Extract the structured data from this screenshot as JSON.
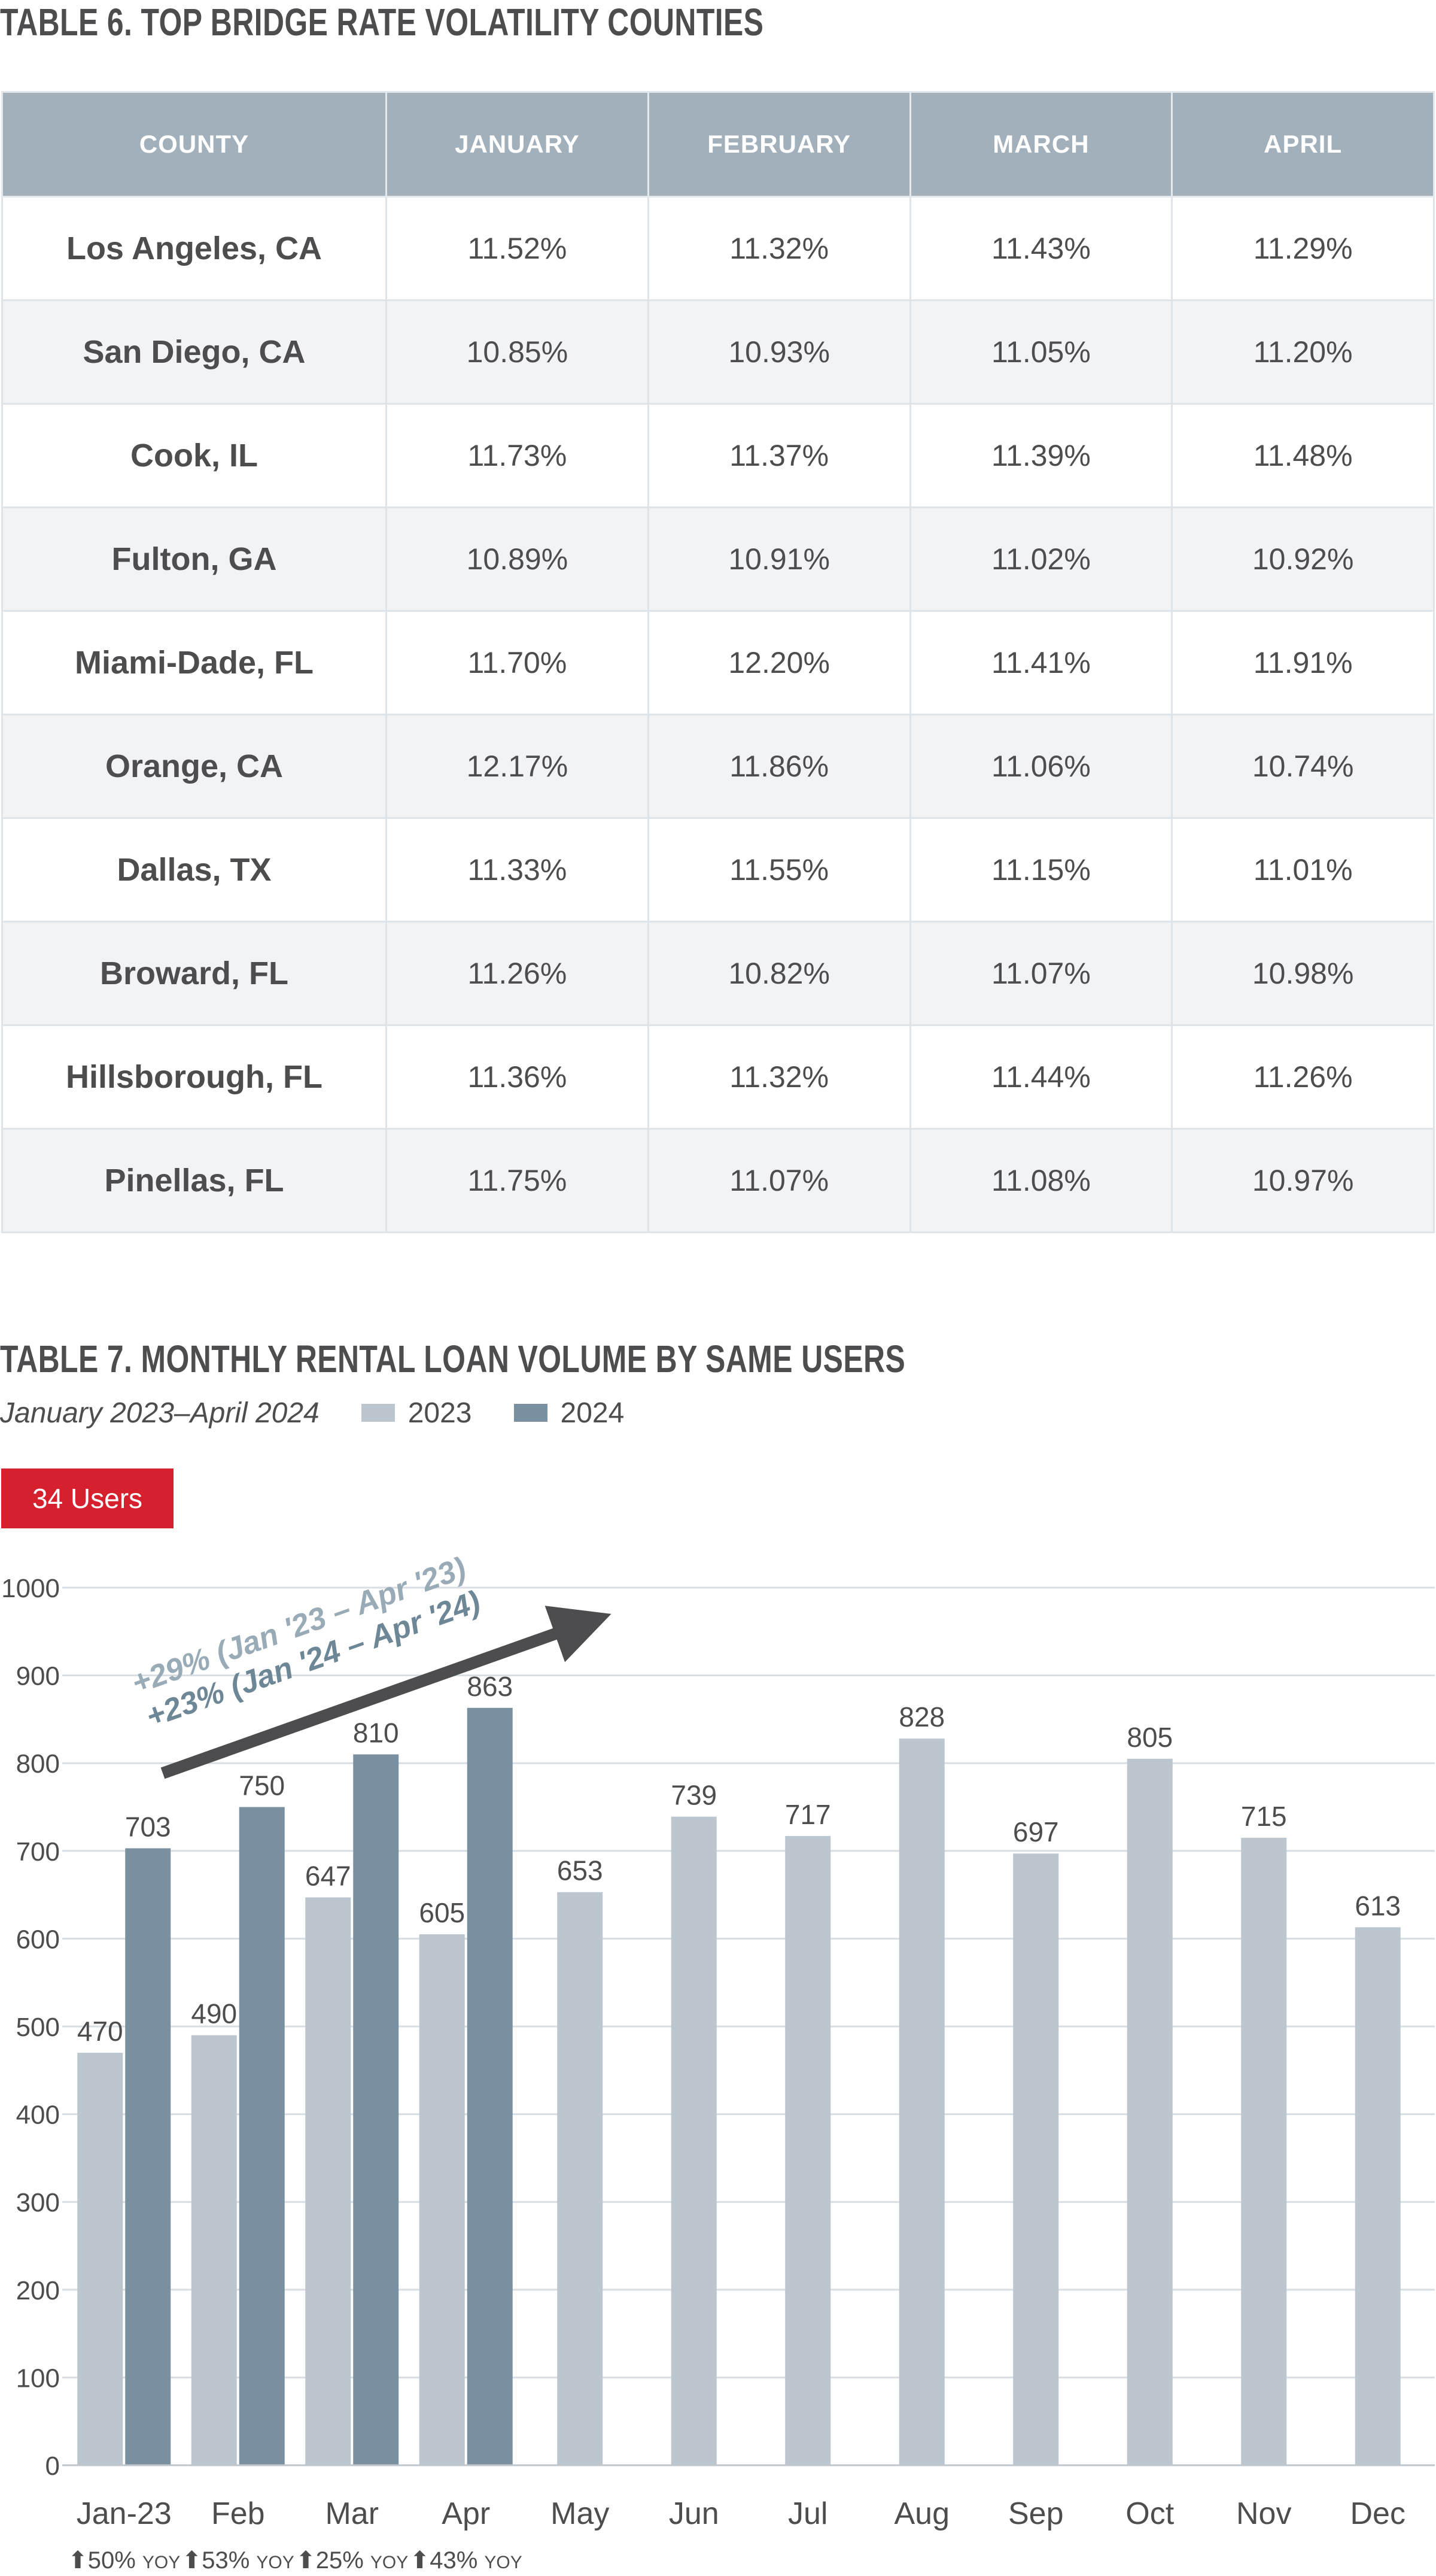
{
  "table6": {
    "title": "TABLE 6. TOP BRIDGE RATE VOLATILITY COUNTIES",
    "headers": [
      "COUNTY",
      "JANUARY",
      "FEBRUARY",
      "MARCH",
      "APRIL"
    ],
    "rows": [
      [
        "Los Angeles, CA",
        "11.52%",
        "11.32%",
        "11.43%",
        "11.29%"
      ],
      [
        "San Diego, CA",
        "10.85%",
        "10.93%",
        "11.05%",
        "11.20%"
      ],
      [
        "Cook, IL",
        "11.73%",
        "11.37%",
        "11.39%",
        "11.48%"
      ],
      [
        "Fulton, GA",
        "10.89%",
        "10.91%",
        "11.02%",
        "10.92%"
      ],
      [
        "Miami-Dade, FL",
        "11.70%",
        "12.20%",
        "11.41%",
        "11.91%"
      ],
      [
        "Orange, CA",
        "12.17%",
        "11.86%",
        "11.06%",
        "10.74%"
      ],
      [
        "Dallas, TX",
        "11.33%",
        "11.55%",
        "11.15%",
        "11.01%"
      ],
      [
        "Broward, FL",
        "11.26%",
        "10.82%",
        "11.07%",
        "10.98%"
      ],
      [
        "Hillsborough, FL",
        "11.36%",
        "11.32%",
        "11.44%",
        "11.26%"
      ],
      [
        "Pinellas, FL",
        "11.75%",
        "11.07%",
        "11.08%",
        "10.97%"
      ]
    ]
  },
  "table7": {
    "title": "TABLE 7. MONTHLY RENTAL LOAN VOLUME BY SAME USERS",
    "date_range": "January 2023–April 2024",
    "badge": "34 Users"
  },
  "colors": {
    "series_2023": "#bcc6cf",
    "series_2024": "#7990a0",
    "header_bg": "#a2b0bc",
    "badge_red": "#d7202d",
    "arrow": "#4d4d4f",
    "annotation_2023": "#9aabb8",
    "annotation_2024": "#6e8797"
  },
  "chart_data": {
    "type": "bar",
    "categories": [
      "Jan-23",
      "Feb",
      "Mar",
      "Apr",
      "May",
      "Jun",
      "Jul",
      "Aug",
      "Sep",
      "Oct",
      "Nov",
      "Dec"
    ],
    "series": [
      {
        "name": "2023",
        "values": [
          470,
          490,
          647,
          605,
          653,
          739,
          717,
          828,
          697,
          805,
          715,
          613
        ]
      },
      {
        "name": "2024",
        "values": [
          703,
          750,
          810,
          863,
          null,
          null,
          null,
          null,
          null,
          null,
          null,
          null
        ]
      }
    ],
    "ylim": [
      0,
      1000
    ],
    "yticks": [
      0,
      100,
      200,
      300,
      400,
      500,
      600,
      700,
      800,
      900,
      1000
    ],
    "grid": true,
    "legend": "top-left",
    "yoy": [
      "50%",
      "53%",
      "25%",
      "43%"
    ],
    "yoy_suffix": "YOY",
    "annotations": [
      "+29% (Jan '23 – Apr '23)",
      "+23% (Jan '24 – Apr '24)"
    ]
  }
}
